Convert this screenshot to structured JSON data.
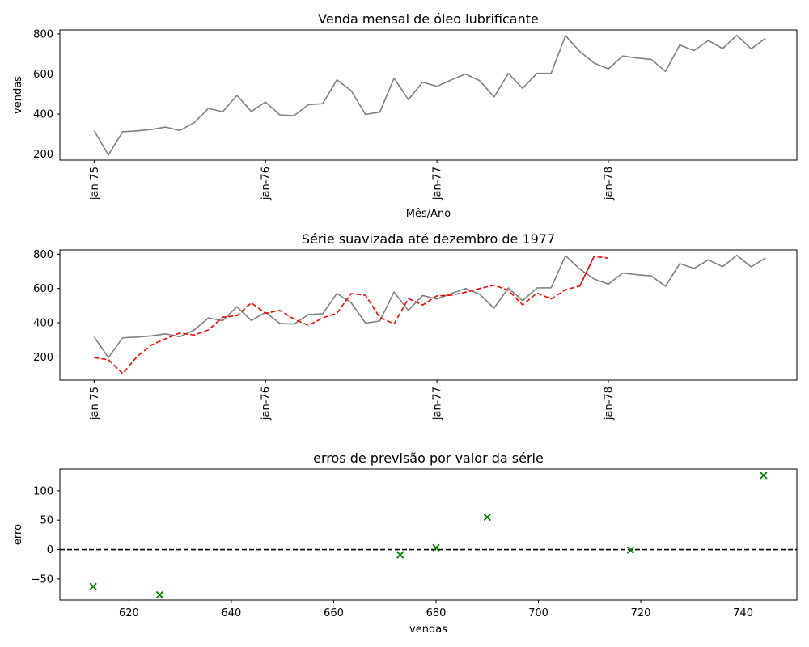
{
  "chart_data": [
    {
      "type": "line",
      "title": "Venda mensal de óleo lubrificante",
      "xlabel": "Mês/Ano",
      "ylabel": "vendas",
      "x_tick_labels": [
        "jan-75",
        "jan-76",
        "jan-77",
        "jan-78"
      ],
      "x_tick_months": [
        0,
        12,
        24,
        36
      ],
      "xlim": [
        -2.4,
        49.2
      ],
      "ylim": [
        170,
        820
      ],
      "y_ticks": [
        200,
        400,
        600,
        800
      ],
      "series": [
        {
          "color": "#808080",
          "style": "solid",
          "x": [
            0,
            1,
            2,
            3,
            4,
            5,
            6,
            7,
            8,
            9,
            10,
            11,
            12,
            13,
            14,
            15,
            16,
            17,
            18,
            19,
            20,
            21,
            22,
            23,
            24,
            25,
            26,
            27,
            28,
            29,
            30,
            31,
            32,
            33,
            34,
            35,
            36,
            37,
            38,
            39,
            40,
            41,
            42,
            43,
            44,
            45,
            46,
            47
          ],
          "values": [
            317,
            196,
            312,
            316,
            323,
            335,
            318,
            357,
            428,
            412,
            493,
            413,
            460,
            396,
            392,
            447,
            452,
            571,
            516,
            398,
            410,
            579,
            472,
            559,
            538,
            570,
            600,
            566,
            485,
            603,
            528,
            603,
            604,
            791,
            713,
            655,
            626,
            690,
            680,
            673,
            613,
            745,
            717,
            767,
            727,
            793,
            726,
            778
          ]
        }
      ]
    },
    {
      "type": "line",
      "title": "Série suavizada até dezembro de 1977",
      "xlabel": "",
      "ylabel": "",
      "x_tick_labels": [
        "jan-75",
        "jan-76",
        "jan-77",
        "jan-78"
      ],
      "x_tick_months": [
        0,
        12,
        24,
        36
      ],
      "xlim": [
        -2.4,
        49.2
      ],
      "ylim": [
        65,
        825
      ],
      "y_ticks": [
        200,
        400,
        600,
        800
      ],
      "series": [
        {
          "color": "#808080",
          "style": "solid",
          "x": [
            0,
            1,
            2,
            3,
            4,
            5,
            6,
            7,
            8,
            9,
            10,
            11,
            12,
            13,
            14,
            15,
            16,
            17,
            18,
            19,
            20,
            21,
            22,
            23,
            24,
            25,
            26,
            27,
            28,
            29,
            30,
            31,
            32,
            33,
            34,
            35,
            36,
            37,
            38,
            39,
            40,
            41,
            42,
            43,
            44,
            45,
            46,
            47
          ],
          "values": [
            317,
            196,
            312,
            316,
            323,
            335,
            318,
            357,
            428,
            412,
            493,
            413,
            460,
            396,
            392,
            447,
            452,
            571,
            516,
            398,
            410,
            579,
            472,
            559,
            538,
            570,
            600,
            566,
            485,
            603,
            528,
            603,
            604,
            791,
            713,
            655,
            626,
            690,
            680,
            673,
            613,
            745,
            717,
            767,
            727,
            793,
            726,
            778
          ]
        },
        {
          "color": "#ff0000",
          "style": "dashed",
          "x": [
            0,
            1,
            2,
            3,
            4,
            5,
            6,
            7,
            8,
            9,
            10,
            11,
            12,
            13,
            14,
            15,
            16,
            17,
            18,
            19,
            20,
            21,
            22,
            23,
            24,
            25,
            26,
            27,
            28,
            29,
            30,
            31,
            32,
            33,
            34,
            35
          ],
          "values": [
            196,
            184,
            103,
            202,
            270,
            306,
            340,
            328,
            358,
            432,
            441,
            516,
            455,
            472,
            421,
            384,
            428,
            456,
            570,
            560,
            430,
            394,
            541,
            503,
            557,
            560,
            578,
            600,
            619,
            589,
            504,
            573,
            539,
            593,
            614,
            787
          ]
        },
        {
          "color": "#ff0000",
          "style": "dashed",
          "x": [
            34,
            35,
            36
          ],
          "values": [
            614,
            787,
            777
          ]
        }
      ]
    },
    {
      "type": "scatter",
      "title": "erros de previsão por valor da série",
      "xlabel": "vendas",
      "ylabel": "erro",
      "xlim": [
        606.5,
        750.5
      ],
      "ylim": [
        -86,
        137
      ],
      "x_ticks": [
        620,
        640,
        660,
        680,
        700,
        720,
        740
      ],
      "y_ticks": [
        -50,
        0,
        50,
        100
      ],
      "y_tick_labels": [
        "−50",
        "0",
        "50",
        "100"
      ],
      "reference_line": 0,
      "marker": "x",
      "marker_color": "#008000",
      "points": [
        {
          "x": 613,
          "y": -63
        },
        {
          "x": 626,
          "y": -77
        },
        {
          "x": 673,
          "y": -9
        },
        {
          "x": 680,
          "y": 3
        },
        {
          "x": 690,
          "y": 55
        },
        {
          "x": 718,
          "y": -1
        },
        {
          "x": 744,
          "y": 126
        }
      ]
    }
  ]
}
